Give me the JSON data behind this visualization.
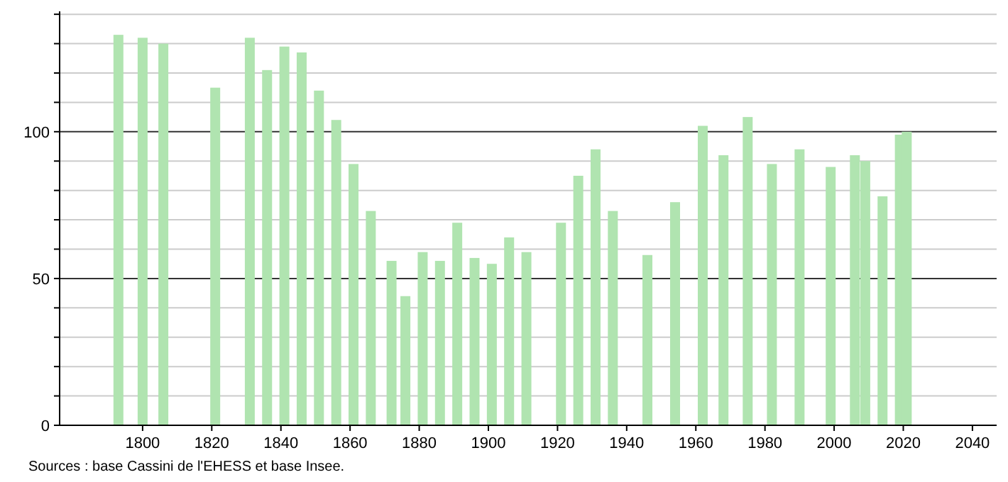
{
  "chart_data": {
    "type": "bar",
    "x": [
      1793,
      1800,
      1806,
      1821,
      1831,
      1836,
      1841,
      1846,
      1851,
      1856,
      1861,
      1866,
      1872,
      1876,
      1881,
      1886,
      1891,
      1896,
      1901,
      1906,
      1911,
      1921,
      1926,
      1931,
      1936,
      1946,
      1954,
      1962,
      1968,
      1975,
      1982,
      1990,
      1999,
      2006,
      2009,
      2014,
      2019,
      2021
    ],
    "values": [
      133,
      132,
      130,
      115,
      132,
      121,
      129,
      127,
      114,
      104,
      89,
      73,
      56,
      44,
      59,
      56,
      69,
      57,
      55,
      64,
      59,
      69,
      85,
      94,
      73,
      58,
      76,
      102,
      92,
      105,
      89,
      94,
      88,
      92,
      90,
      78,
      99,
      100
    ],
    "color": "#b0e4b0",
    "xlim": [
      1776,
      2047
    ],
    "xticks": [
      1800,
      1820,
      1840,
      1860,
      1880,
      1900,
      1920,
      1940,
      1960,
      1980,
      2000,
      2020,
      2040
    ],
    "ylim": [
      0,
      141
    ],
    "yticks": [
      0,
      {
        "value": 10,
        "label": null
      },
      {
        "value": 20,
        "label": null
      },
      {
        "value": 30,
        "label": null
      },
      {
        "value": 40,
        "label": null
      },
      50,
      {
        "value": 60,
        "label": null
      },
      {
        "value": 70,
        "label": null
      },
      {
        "value": 80,
        "label": null
      },
      {
        "value": 90,
        "label": null
      },
      100,
      {
        "value": 110,
        "label": null
      },
      {
        "value": 120,
        "label": null
      },
      {
        "value": 130,
        "label": null
      },
      {
        "value": 140,
        "label": null
      }
    ],
    "grid": "y",
    "annotations": [
      "Sources : base Cassini de l'EHESS et base Insee."
    ]
  }
}
